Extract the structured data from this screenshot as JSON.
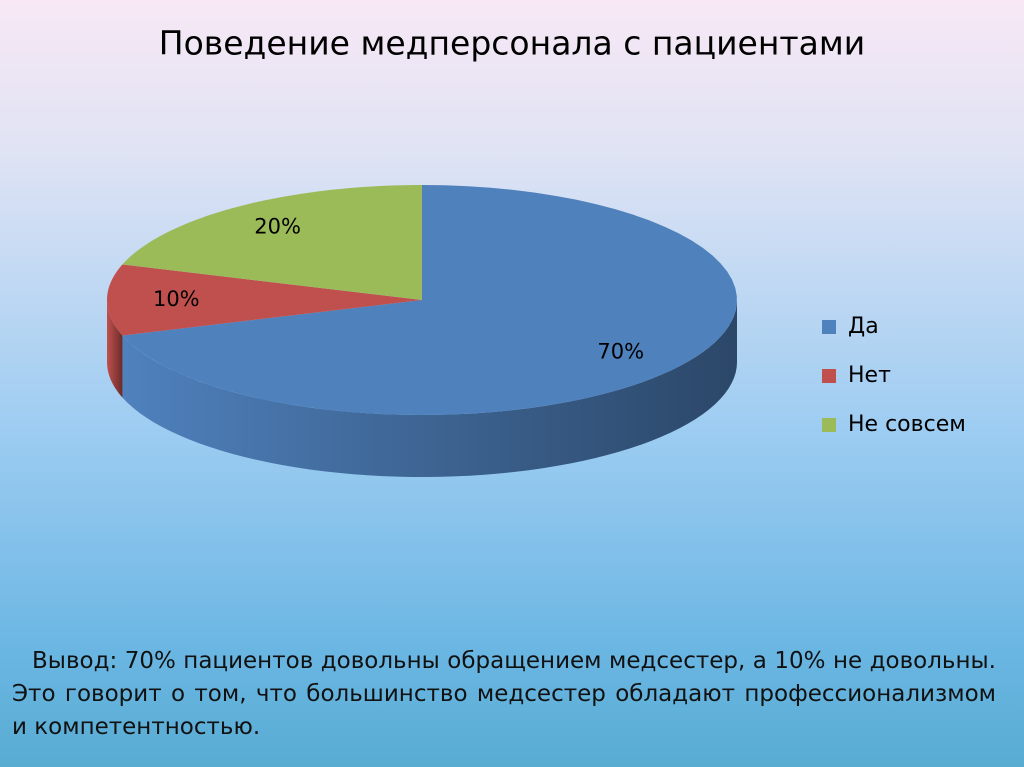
{
  "chart_data": {
    "type": "pie",
    "title": "Поведение медперсонала с пациентами",
    "categories": [
      "Да",
      "Нет",
      "Не совсем"
    ],
    "series": [
      {
        "colors": [
          "#4f81bd",
          "#c0504d",
          "#9bbb59"
        ],
        "values": [
          70,
          10,
          20
        ],
        "value_labels": [
          "70%",
          "10%",
          "20%"
        ]
      }
    ],
    "legend": "right",
    "annotation": "Вывод: 70% пациентов довольны обращением медсестер, а 10% не довольны. Это говорит о том, что большинство медсестер обладают профессионализмом и компетентностью."
  }
}
